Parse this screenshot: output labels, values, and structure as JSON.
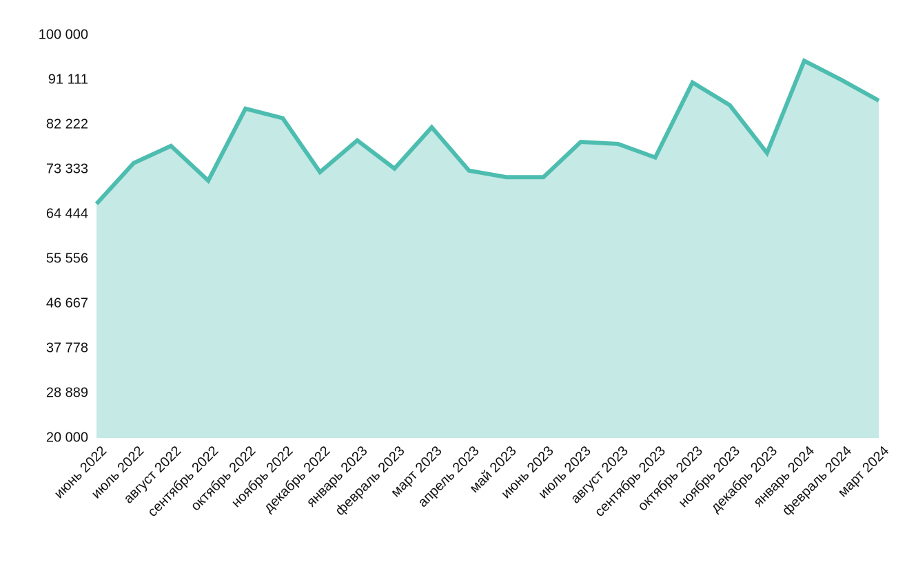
{
  "chart_data": {
    "type": "area",
    "categories": [
      "июнь 2022",
      "июль 2022",
      "август 2022",
      "сентябрь 2022",
      "октябрь 2022",
      "ноябрь 2022",
      "декабрь 2022",
      "январь 2023",
      "февраль 2023",
      "март 2023",
      "апрель 2023",
      "май 2023",
      "июнь 2023",
      "июль 2023",
      "август 2023",
      "сентябрь 2023",
      "октябрь 2023",
      "ноябрь 2023",
      "декабрь 2023",
      "январь 2024",
      "февраль 2024",
      "март 2024"
    ],
    "values": [
      66500,
      74600,
      78000,
      71100,
      85400,
      83500,
      72800,
      79100,
      73500,
      81700,
      73100,
      71800,
      71800,
      78800,
      78400,
      75700,
      90600,
      86100,
      76600,
      94900,
      91100,
      87000
    ],
    "color": "#4dbdb0",
    "fill": "#c5e9e5",
    "ylim": [
      20000,
      100000
    ],
    "yticks": [
      {
        "value": 20000,
        "label": "20 000"
      },
      {
        "value": 28889,
        "label": "28 889"
      },
      {
        "value": 37778,
        "label": "37 778"
      },
      {
        "value": 46667,
        "label": "46 667"
      },
      {
        "value": 55556,
        "label": "55 556"
      },
      {
        "value": 64444,
        "label": "64 444"
      },
      {
        "value": 73333,
        "label": "73 333"
      },
      {
        "value": 82222,
        "label": "82 222"
      },
      {
        "value": 91111,
        "label": "91 111"
      },
      {
        "value": 100000,
        "label": "100 000"
      }
    ],
    "grid": false
  }
}
